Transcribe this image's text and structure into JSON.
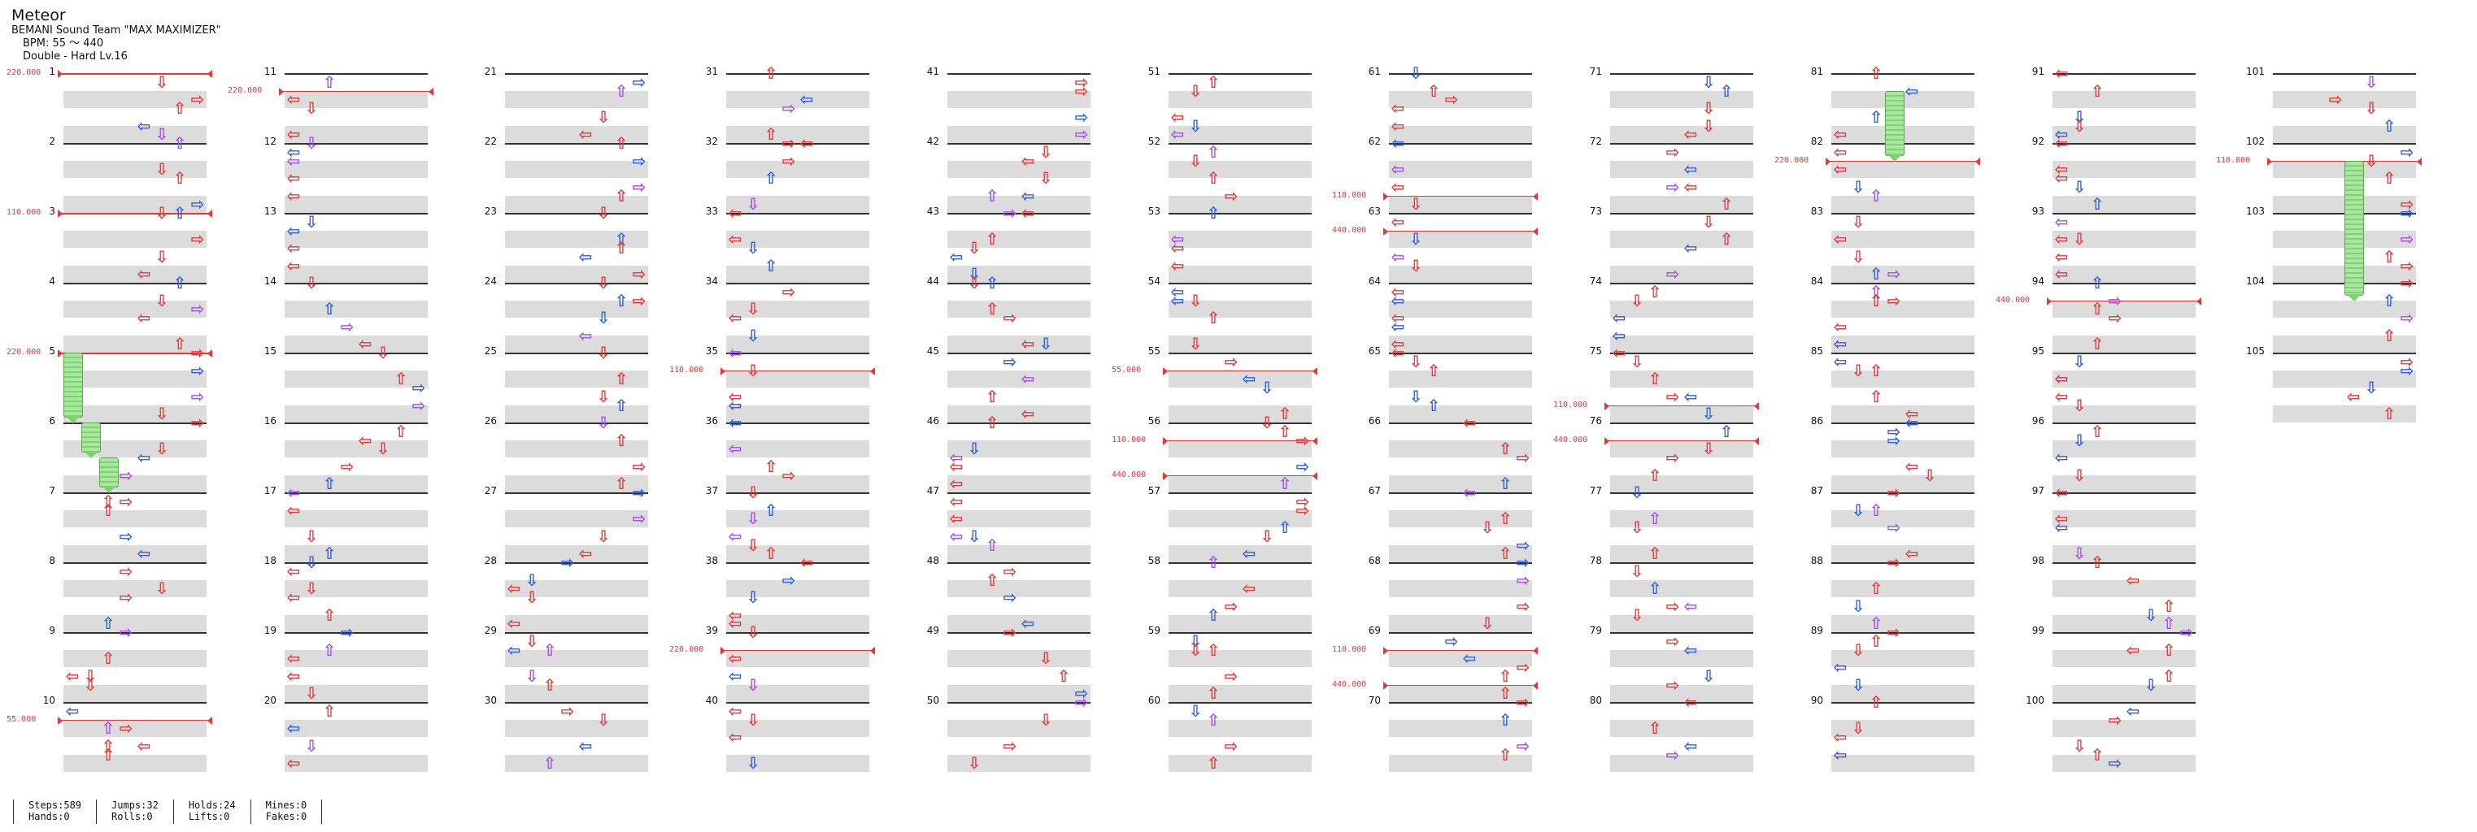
{
  "header": {
    "title": "Meteor",
    "artist": "BEMANI Sound Team \"MAX MAXIMIZER\"",
    "bpm": "BPM: 55 ～ 440",
    "difficulty": "Double - Hard Lv.16"
  },
  "footer": {
    "steps": "Steps:589",
    "hands": "Hands:0",
    "jumps": "Jumps:32",
    "rolls": "Rolls:0",
    "holds": "Holds:24",
    "lifts": "Lifts:0",
    "mines": "Mines:0",
    "fakes": "Fakes:0"
  },
  "columns": [
    {
      "measures": [
        1,
        2,
        3,
        4,
        5,
        6,
        7,
        8,
        9,
        10
      ]
    },
    {
      "measures": [
        11,
        12,
        13,
        14,
        15,
        16,
        17,
        18,
        19,
        20
      ]
    },
    {
      "measures": [
        21,
        22,
        23,
        24,
        25,
        26,
        27,
        28,
        29,
        30
      ]
    },
    {
      "measures": [
        31,
        32,
        33,
        34,
        35,
        36,
        37,
        38,
        39,
        40
      ]
    },
    {
      "measures": [
        41,
        42,
        43,
        44,
        45,
        46,
        47,
        48,
        49,
        50
      ]
    },
    {
      "measures": [
        51,
        52,
        53,
        54,
        55,
        56,
        57,
        58,
        59,
        60
      ]
    },
    {
      "measures": [
        61,
        62,
        63,
        64,
        65,
        66,
        67,
        68,
        69,
        70
      ]
    },
    {
      "measures": [
        71,
        72,
        73,
        74,
        75,
        76,
        77,
        78,
        79,
        80
      ]
    },
    {
      "measures": [
        81,
        82,
        83,
        84,
        85,
        86,
        87,
        88,
        89,
        90
      ]
    },
    {
      "measures": [
        91,
        92,
        93,
        94,
        95,
        96,
        97,
        98,
        99,
        100
      ]
    },
    {
      "measures": [
        101,
        102,
        103,
        104,
        105
      ]
    }
  ],
  "bpm_changes": [
    {
      "col": 0,
      "beat": 0,
      "label": "220.000"
    },
    {
      "col": 0,
      "beat": 8,
      "label": "110.000"
    },
    {
      "col": 0,
      "beat": 16,
      "label": "220.000"
    },
    {
      "col": 0,
      "beat": 37,
      "label": "55.000"
    },
    {
      "col": 1,
      "beat": 1,
      "label": "220.000"
    },
    {
      "col": 3,
      "beat": 17,
      "label": "110.000"
    },
    {
      "col": 3,
      "beat": 33,
      "label": "220.000"
    },
    {
      "col": 5,
      "beat": 17,
      "label": "55.000"
    },
    {
      "col": 5,
      "beat": 21,
      "label": "110.000"
    },
    {
      "col": 5,
      "beat": 23,
      "label": "440.000"
    },
    {
      "col": 6,
      "beat": 7,
      "label": "110.000"
    },
    {
      "col": 6,
      "beat": 9,
      "label": "440.000"
    },
    {
      "col": 6,
      "beat": 33,
      "label": "110.000"
    },
    {
      "col": 6,
      "beat": 35,
      "label": "440.000"
    },
    {
      "col": 7,
      "beat": 19,
      "label": "110.000"
    },
    {
      "col": 7,
      "beat": 21,
      "label": "440.000"
    },
    {
      "col": 8,
      "beat": 5,
      "label": "220.000"
    },
    {
      "col": 9,
      "beat": 13,
      "label": "440.000"
    },
    {
      "col": 10,
      "beat": 5,
      "label": "110.000"
    }
  ],
  "holds": [
    {
      "col": 0,
      "lane": 0,
      "start": 16,
      "end": 20
    },
    {
      "col": 0,
      "lane": 1,
      "start": 20,
      "end": 22
    },
    {
      "col": 0,
      "lane": 2,
      "start": 22,
      "end": 24
    },
    {
      "col": 8,
      "lane": 3,
      "start": 1,
      "end": 5
    },
    {
      "col": 10,
      "lane": 4,
      "start": 5,
      "end": 13
    }
  ],
  "note_colors": {
    "red": "#e8393a",
    "blue": "#2f5fe6",
    "purple": "#a54ff0",
    "orange": "#e98b35",
    "green": "#7cc86e",
    "yellow": "#f4d534"
  }
}
